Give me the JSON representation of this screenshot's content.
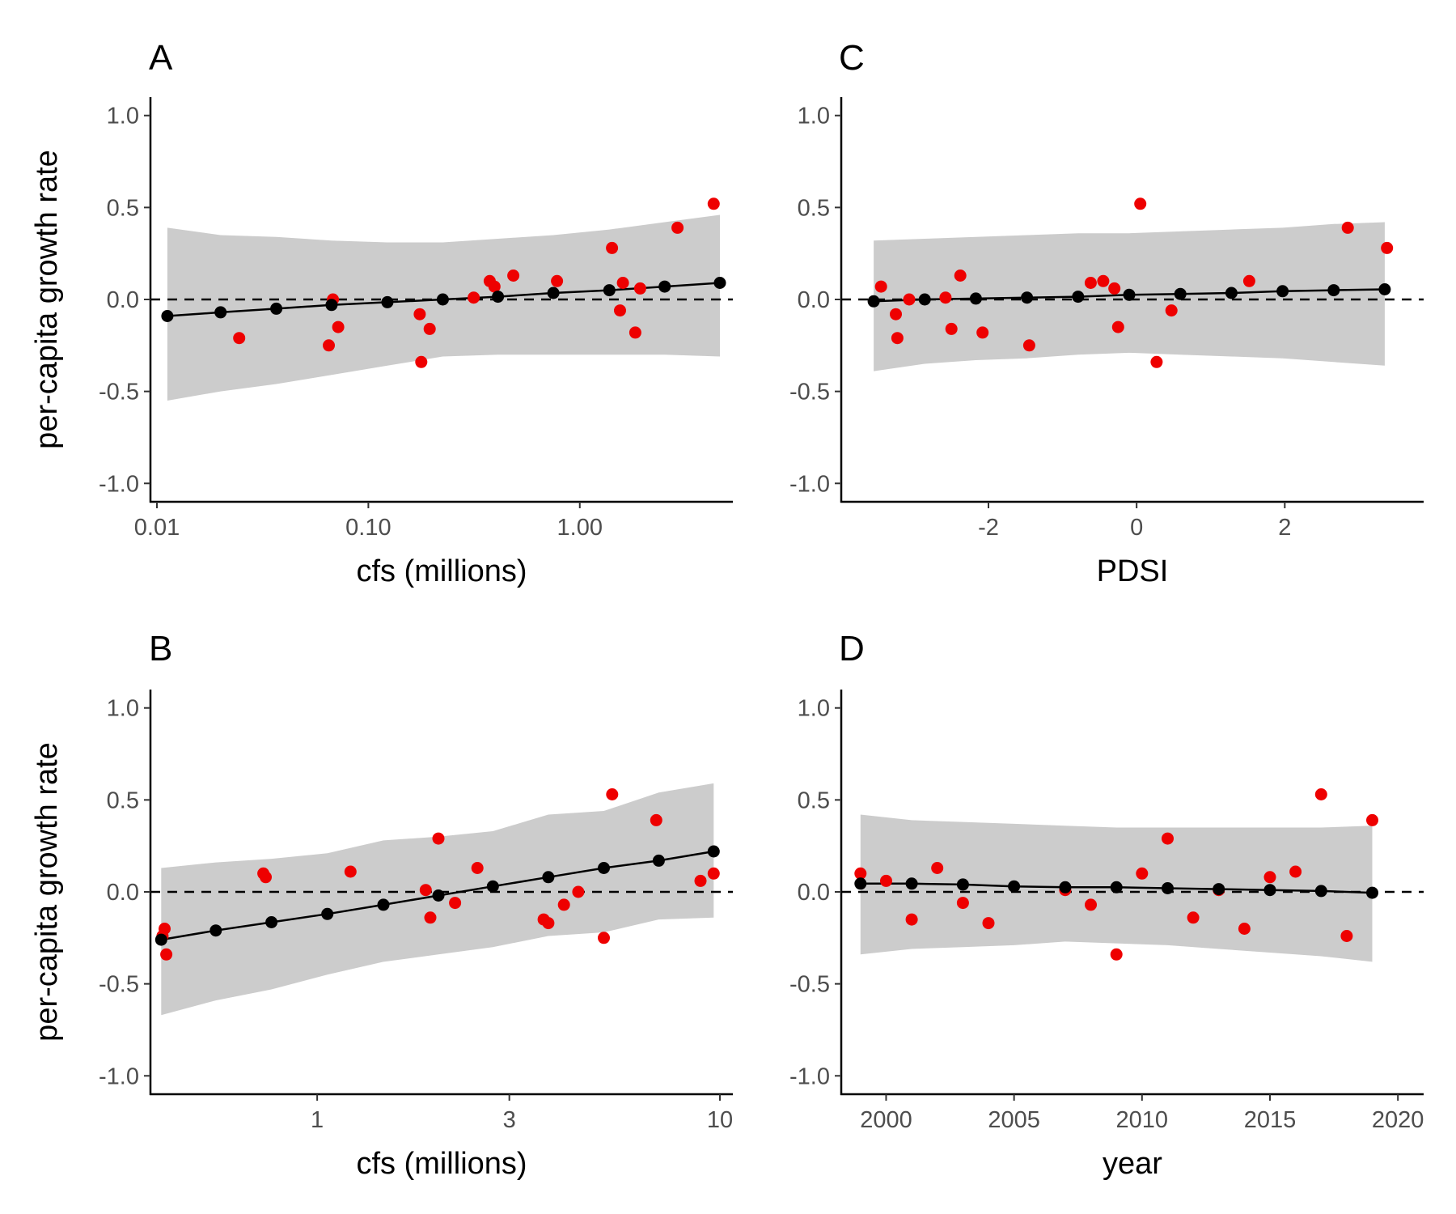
{
  "colors": {
    "observed": "#ee0000",
    "predicted": "#000000",
    "band": "#cccccc",
    "axis": "#000000",
    "tick_text": "#4d4d4d"
  },
  "chart_data": [
    {
      "panel": "A",
      "type": "scatter",
      "xlabel": "cfs (millions)",
      "ylabel": "per-capita growth rate",
      "x_scale": "log10",
      "xlim": [
        0.01,
        4.6
      ],
      "ylim": [
        -1.1,
        1.1
      ],
      "x_ticks": [
        0.01,
        0.1,
        1
      ],
      "x_tick_labels": [
        "0.01",
        "0.10",
        "1.00"
      ],
      "y_ticks": [
        -1.0,
        -0.5,
        0.0,
        0.5,
        1.0
      ],
      "y_tick_labels": [
        "-1.0",
        "-0.5",
        "0.0",
        "0.5",
        "1.0"
      ],
      "reference_line_y": 0,
      "band": {
        "x": [
          0.0112,
          0.02,
          0.0367,
          0.067,
          0.123,
          0.225,
          0.41,
          0.75,
          1.38,
          2.52,
          4.6
        ],
        "lower": [
          -0.55,
          -0.5,
          -0.46,
          -0.41,
          -0.36,
          -0.31,
          -0.3,
          -0.3,
          -0.3,
          -0.3,
          -0.31
        ],
        "upper": [
          0.39,
          0.35,
          0.34,
          0.32,
          0.31,
          0.31,
          0.33,
          0.35,
          0.38,
          0.42,
          0.46
        ]
      },
      "predicted": {
        "x": [
          0.0112,
          0.02,
          0.0367,
          0.067,
          0.123,
          0.225,
          0.41,
          0.75,
          1.38,
          2.52,
          4.6
        ],
        "y": [
          -0.09,
          -0.07,
          -0.05,
          -0.03,
          -0.015,
          0.0,
          0.015,
          0.035,
          0.05,
          0.07,
          0.09
        ]
      },
      "observed": {
        "x": [
          0.0245,
          0.065,
          0.068,
          0.072,
          0.175,
          0.178,
          0.195,
          0.315,
          0.375,
          0.395,
          0.485,
          0.78,
          1.42,
          1.55,
          1.6,
          1.83,
          1.93,
          2.9,
          4.3
        ],
        "y": [
          -0.21,
          -0.25,
          0.0,
          -0.15,
          -0.08,
          -0.34,
          -0.16,
          0.01,
          0.1,
          0.07,
          0.13,
          0.1,
          0.28,
          -0.06,
          0.09,
          -0.18,
          0.06,
          0.39,
          0.52
        ]
      }
    },
    {
      "panel": "B",
      "type": "scatter",
      "xlabel": "cfs (millions)",
      "ylabel": "per-capita growth rate",
      "x_scale": "log10",
      "xlim": [
        0.4,
        10.0
      ],
      "ylim": [
        -1.1,
        1.1
      ],
      "x_ticks": [
        1,
        3,
        10
      ],
      "x_tick_labels": [
        "1",
        "3",
        "10"
      ],
      "y_ticks": [
        -1.0,
        -0.5,
        0.0,
        0.5,
        1.0
      ],
      "y_tick_labels": [
        "-1.0",
        "-0.5",
        "0.0",
        "0.5",
        "1.0"
      ],
      "reference_line_y": 0,
      "band": {
        "x": [
          0.41,
          0.56,
          0.77,
          1.06,
          1.46,
          2.0,
          2.73,
          3.75,
          5.15,
          7.05,
          9.65
        ],
        "lower": [
          -0.67,
          -0.59,
          -0.53,
          -0.45,
          -0.38,
          -0.34,
          -0.3,
          -0.24,
          -0.22,
          -0.15,
          -0.14
        ],
        "upper": [
          0.13,
          0.16,
          0.18,
          0.21,
          0.28,
          0.3,
          0.33,
          0.42,
          0.44,
          0.54,
          0.59
        ]
      },
      "predicted": {
        "x": [
          0.41,
          0.56,
          0.77,
          1.06,
          1.46,
          2.0,
          2.73,
          3.75,
          5.15,
          7.05,
          9.65
        ],
        "y": [
          -0.26,
          -0.21,
          -0.165,
          -0.12,
          -0.07,
          -0.02,
          0.03,
          0.08,
          0.13,
          0.17,
          0.22
        ]
      },
      "observed": {
        "x": [
          0.413,
          0.418,
          0.422,
          0.735,
          0.745,
          1.21,
          1.86,
          1.91,
          2.0,
          2.2,
          2.5,
          3.65,
          3.75,
          4.1,
          4.45,
          5.15,
          5.4,
          6.95,
          8.95,
          9.65
        ],
        "y": [
          -0.24,
          -0.2,
          -0.34,
          0.1,
          0.08,
          0.11,
          0.01,
          -0.14,
          0.29,
          -0.06,
          0.13,
          -0.15,
          -0.17,
          -0.07,
          0.0,
          -0.25,
          0.53,
          0.39,
          0.06,
          0.1
        ]
      }
    },
    {
      "panel": "C",
      "type": "scatter",
      "xlabel": "PDSI",
      "ylabel": "",
      "x_scale": "linear",
      "xlim": [
        -3.9,
        3.7
      ],
      "ylim": [
        -1.1,
        1.1
      ],
      "x_ticks": [
        -2,
        0,
        2
      ],
      "x_tick_labels": [
        "-2",
        "0",
        "2"
      ],
      "y_ticks": [
        -1.0,
        -0.5,
        0.0,
        0.5,
        1.0
      ],
      "y_tick_labels": [
        "-1.0",
        "-0.5",
        "0.0",
        "0.5",
        "1.0"
      ],
      "reference_line_y": 0,
      "band": {
        "x": [
          -3.55,
          -2.86,
          -2.17,
          -1.48,
          -0.79,
          -0.1,
          0.59,
          1.28,
          1.97,
          2.66,
          3.35
        ],
        "lower": [
          -0.39,
          -0.35,
          -0.33,
          -0.32,
          -0.3,
          -0.29,
          -0.3,
          -0.31,
          -0.32,
          -0.34,
          -0.36
        ],
        "upper": [
          0.32,
          0.33,
          0.34,
          0.35,
          0.36,
          0.36,
          0.37,
          0.38,
          0.39,
          0.41,
          0.42
        ]
      },
      "predicted": {
        "x": [
          -3.55,
          -2.86,
          -2.17,
          -1.48,
          -0.79,
          -0.1,
          0.59,
          1.28,
          1.97,
          2.66,
          3.35
        ],
        "y": [
          -0.01,
          0.0,
          0.005,
          0.01,
          0.015,
          0.025,
          0.03,
          0.035,
          0.045,
          0.05,
          0.055
        ]
      },
      "observed": {
        "x": [
          -3.45,
          -3.25,
          -3.23,
          -3.07,
          -2.58,
          -2.5,
          -2.38,
          -2.08,
          -1.45,
          -0.62,
          -0.45,
          -0.3,
          -0.25,
          0.05,
          0.27,
          0.47,
          1.52,
          2.85,
          3.38
        ],
        "y": [
          0.07,
          -0.08,
          -0.21,
          0.0,
          0.01,
          -0.16,
          0.13,
          -0.18,
          -0.25,
          0.09,
          0.1,
          0.06,
          -0.15,
          0.52,
          -0.34,
          -0.06,
          0.1,
          0.39,
          0.28
        ]
      }
    },
    {
      "panel": "D",
      "type": "scatter",
      "xlabel": "year",
      "ylabel": "",
      "x_scale": "linear",
      "xlim": [
        1998.5,
        2020.5
      ],
      "ylim": [
        -1.1,
        1.1
      ],
      "x_ticks": [
        2000,
        2005,
        2010,
        2015,
        2020
      ],
      "x_tick_labels": [
        "2000",
        "2005",
        "2010",
        "2015",
        "2020"
      ],
      "y_ticks": [
        -1.0,
        -0.5,
        0.0,
        0.5,
        1.0
      ],
      "y_tick_labels": [
        "-1.0",
        "-0.5",
        "0.0",
        "0.5",
        "1.0"
      ],
      "reference_line_y": 0,
      "band": {
        "x": [
          1999,
          2001,
          2003,
          2005,
          2007,
          2009,
          2011,
          2013,
          2015,
          2017,
          2019
        ],
        "lower": [
          -0.34,
          -0.31,
          -0.3,
          -0.29,
          -0.27,
          -0.28,
          -0.29,
          -0.31,
          -0.33,
          -0.35,
          -0.38
        ],
        "upper": [
          0.42,
          0.39,
          0.38,
          0.37,
          0.36,
          0.35,
          0.35,
          0.35,
          0.35,
          0.35,
          0.36
        ]
      },
      "predicted": {
        "x": [
          1999,
          2001,
          2003,
          2005,
          2007,
          2009,
          2011,
          2013,
          2015,
          2017,
          2019
        ],
        "y": [
          0.045,
          0.045,
          0.04,
          0.03,
          0.025,
          0.025,
          0.02,
          0.015,
          0.01,
          0.005,
          -0.005
        ]
      },
      "observed": {
        "x": [
          1999,
          2000,
          2001,
          2002,
          2003,
          2004,
          2007,
          2008,
          2009,
          2010,
          2011,
          2012,
          2013,
          2014,
          2015,
          2016,
          2017,
          2018,
          2019
        ],
        "y": [
          0.1,
          0.06,
          -0.15,
          0.13,
          -0.06,
          -0.17,
          0.01,
          -0.07,
          -0.34,
          0.1,
          0.29,
          -0.14,
          0.01,
          -0.2,
          0.08,
          0.11,
          0.53,
          -0.24,
          0.39
        ]
      }
    }
  ]
}
